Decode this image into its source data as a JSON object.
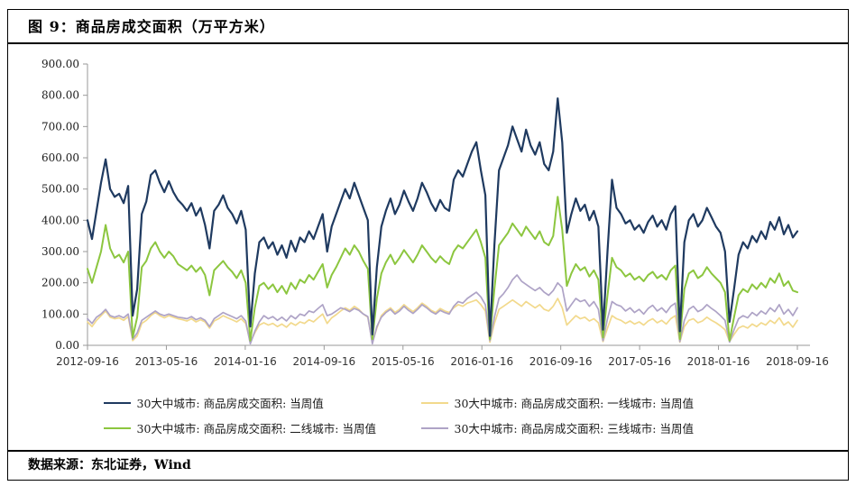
{
  "figure": {
    "title": "图 9：商品房成交面积（万平方米）",
    "source": "数据来源：东北证券，Wind"
  },
  "chart_data": {
    "type": "line",
    "title": "商品房成交面积（万平方米）",
    "xlabel": "",
    "ylabel": "",
    "ylim": [
      0,
      900
    ],
    "grid": false,
    "legend_position": "bottom",
    "axis_color": "#9a9a9a",
    "x_start": "2012-09-16",
    "x_step_days": 14,
    "x_ticks": [
      "2012-09-16",
      "2013-05-16",
      "2014-01-16",
      "2014-09-16",
      "2015-05-16",
      "2016-01-16",
      "2016-09-16",
      "2017-05-16",
      "2018-01-16",
      "2018-09-16"
    ],
    "y_ticks": [
      "900.00",
      "800.00",
      "700.00",
      "600.00",
      "500.00",
      "400.00",
      "300.00",
      "200.00",
      "100.00",
      "0.00"
    ],
    "series": [
      {
        "name": "30大中城市: 商品房成交面积: 当周值",
        "color": "#1F3A60",
        "values": [
          400,
          340,
          430,
          520,
          595,
          500,
          475,
          485,
          455,
          510,
          95,
          180,
          420,
          460,
          545,
          560,
          520,
          490,
          525,
          490,
          465,
          450,
          430,
          455,
          415,
          440,
          385,
          310,
          430,
          450,
          480,
          440,
          420,
          390,
          430,
          370,
          60,
          230,
          330,
          345,
          310,
          330,
          290,
          320,
          280,
          335,
          300,
          345,
          330,
          365,
          340,
          380,
          420,
          300,
          380,
          420,
          460,
          500,
          470,
          520,
          480,
          440,
          400,
          35,
          250,
          380,
          430,
          470,
          420,
          450,
          495,
          460,
          430,
          470,
          520,
          490,
          455,
          430,
          465,
          440,
          430,
          530,
          560,
          540,
          580,
          620,
          650,
          560,
          480,
          30,
          320,
          560,
          600,
          640,
          700,
          660,
          620,
          690,
          640,
          610,
          650,
          580,
          560,
          620,
          790,
          650,
          360,
          420,
          470,
          430,
          450,
          400,
          430,
          380,
          50,
          300,
          530,
          440,
          420,
          390,
          400,
          370,
          385,
          360,
          395,
          415,
          380,
          400,
          370,
          420,
          445,
          45,
          330,
          400,
          420,
          380,
          400,
          440,
          410,
          380,
          360,
          300,
          75,
          180,
          290,
          330,
          310,
          350,
          330,
          365,
          340,
          395,
          370,
          410,
          355,
          385,
          345,
          365
        ]
      },
      {
        "name": "30大中城市: 商品房成交面积: 一线城市: 当周值",
        "color": "#F2D98C",
        "values": [
          75,
          60,
          80,
          95,
          110,
          90,
          85,
          88,
          80,
          92,
          15,
          30,
          70,
          80,
          95,
          105,
          95,
          88,
          95,
          90,
          85,
          82,
          78,
          85,
          75,
          82,
          75,
          55,
          78,
          85,
          95,
          88,
          82,
          75,
          85,
          70,
          10,
          40,
          65,
          72,
          65,
          70,
          60,
          68,
          58,
          72,
          64,
          75,
          70,
          82,
          75,
          88,
          100,
          70,
          88,
          98,
          110,
          120,
          112,
          125,
          115,
          100,
          90,
          8,
          55,
          95,
          110,
          120,
          105,
          115,
          130,
          118,
          108,
          120,
          135,
          125,
          112,
          105,
          118,
          110,
          105,
          120,
          130,
          125,
          135,
          140,
          145,
          130,
          110,
          10,
          70,
          115,
          125,
          135,
          145,
          135,
          125,
          140,
          130,
          120,
          130,
          115,
          110,
          125,
          150,
          120,
          65,
          80,
          95,
          85,
          90,
          78,
          85,
          72,
          12,
          55,
          95,
          85,
          80,
          70,
          78,
          68,
          75,
          65,
          78,
          85,
          72,
          80,
          68,
          85,
          95,
          10,
          60,
          80,
          85,
          72,
          78,
          90,
          80,
          72,
          62,
          50,
          12,
          35,
          55,
          62,
          55,
          68,
          60,
          72,
          65,
          80,
          70,
          88,
          65,
          75,
          58,
          80
        ]
      },
      {
        "name": "30大中城市: 商品房成交面积: 二线城市: 当周值",
        "color": "#8CC63F",
        "values": [
          245,
          200,
          250,
          300,
          385,
          310,
          280,
          290,
          265,
          300,
          25,
          90,
          250,
          270,
          310,
          330,
          300,
          280,
          300,
          285,
          260,
          250,
          240,
          255,
          235,
          250,
          225,
          160,
          240,
          255,
          270,
          250,
          235,
          215,
          240,
          200,
          15,
          120,
          190,
          200,
          180,
          195,
          170,
          190,
          165,
          200,
          180,
          210,
          200,
          225,
          210,
          235,
          260,
          185,
          225,
          250,
          280,
          310,
          290,
          320,
          300,
          270,
          245,
          20,
          150,
          230,
          265,
          290,
          260,
          280,
          305,
          285,
          265,
          290,
          320,
          300,
          280,
          265,
          285,
          270,
          260,
          300,
          320,
          310,
          330,
          350,
          370,
          330,
          280,
          20,
          180,
          320,
          340,
          360,
          390,
          370,
          350,
          380,
          360,
          340,
          365,
          330,
          320,
          350,
          475,
          370,
          190,
          230,
          260,
          240,
          250,
          220,
          240,
          210,
          25,
          160,
          280,
          250,
          240,
          220,
          230,
          210,
          220,
          205,
          225,
          235,
          215,
          225,
          210,
          240,
          255,
          20,
          180,
          230,
          240,
          215,
          225,
          250,
          230,
          215,
          200,
          170,
          15,
          90,
          160,
          180,
          170,
          195,
          180,
          200,
          185,
          215,
          200,
          230,
          190,
          205,
          175,
          170
        ]
      },
      {
        "name": "30大中城市: 商品房成交面积: 三线城市: 当周值",
        "color": "#AEA3C6",
        "values": [
          85,
          70,
          90,
          100,
          115,
          95,
          90,
          95,
          88,
          100,
          20,
          40,
          80,
          90,
          100,
          110,
          100,
          95,
          100,
          95,
          90,
          88,
          85,
          92,
          82,
          88,
          80,
          60,
          85,
          95,
          105,
          98,
          92,
          85,
          95,
          78,
          5,
          45,
          75,
          95,
          85,
          92,
          80,
          90,
          78,
          95,
          85,
          100,
          95,
          110,
          105,
          118,
          130,
          95,
          100,
          110,
          120,
          115,
          108,
          118,
          112,
          100,
          92,
          5,
          60,
          90,
          105,
          115,
          100,
          110,
          125,
          112,
          102,
          115,
          130,
          120,
          108,
          100,
          112,
          105,
          100,
          125,
          140,
          135,
          150,
          160,
          170,
          155,
          130,
          15,
          90,
          150,
          165,
          185,
          210,
          225,
          205,
          195,
          185,
          175,
          185,
          170,
          160,
          175,
          200,
          185,
          110,
          130,
          150,
          140,
          145,
          125,
          140,
          115,
          15,
          85,
          140,
          130,
          125,
          110,
          120,
          105,
          115,
          100,
          118,
          128,
          110,
          120,
          105,
          125,
          135,
          12,
          80,
          115,
          125,
          108,
          115,
          130,
          118,
          108,
          95,
          80,
          10,
          50,
          85,
          95,
          88,
          105,
          95,
          110,
          100,
          120,
          108,
          130,
          100,
          115,
          95,
          120
        ]
      }
    ]
  }
}
